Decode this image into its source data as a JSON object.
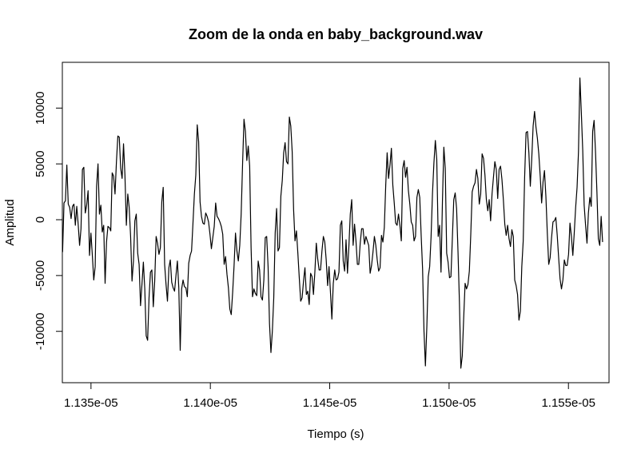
{
  "chart_data": {
    "type": "line",
    "title": "Zoom de la onda en baby_background.wav",
    "xlabel": "Tiempo (s)",
    "ylabel": "Amplitud",
    "xlim": [
      1.1338e-05,
      1.1567e-05
    ],
    "ylim": [
      -14600,
      14100
    ],
    "x_ticks": [
      1.135e-05,
      1.14e-05,
      1.145e-05,
      1.15e-05,
      1.155e-05
    ],
    "x_tick_labels": [
      "1.135e-05",
      "1.140e-05",
      "1.145e-05",
      "1.150e-05",
      "1.155e-05"
    ],
    "y_ticks": [
      -10000,
      -5000,
      0,
      5000,
      10000
    ],
    "y_tick_labels": [
      "-10000",
      "-5000",
      "0",
      "5000",
      "10000"
    ],
    "grid": false,
    "color": "#000000",
    "series": [
      {
        "x_start": 1.13381e-05,
        "x_end": 1.15643e-05,
        "values": [
          -2900,
          1500,
          1700,
          4900,
          1400,
          1100,
          100,
          1200,
          1400,
          -500,
          1200,
          -400,
          -2300,
          -800,
          4500,
          4700,
          600,
          1300,
          2600,
          -3200,
          -1200,
          -3200,
          -5400,
          -4200,
          3000,
          5000,
          500,
          1300,
          -1100,
          -500,
          -5700,
          -2000,
          -600,
          -700,
          -1000,
          4200,
          3900,
          2300,
          5200,
          7500,
          7400,
          4600,
          3700,
          6800,
          4000,
          -500,
          2300,
          1100,
          -1500,
          -5500,
          -3700,
          -100,
          500,
          -3000,
          -4000,
          -7700,
          -5800,
          -3800,
          -6200,
          -10400,
          -10800,
          -7000,
          -4700,
          -4500,
          -7800,
          -5500,
          -1500,
          -2100,
          -3100,
          -2500,
          1600,
          2900,
          -4000,
          -5800,
          -7300,
          -4300,
          -3600,
          -5600,
          -6100,
          -6400,
          -5000,
          -3700,
          -6100,
          -11700,
          -6200,
          -5400,
          -6000,
          -6100,
          -6900,
          -3900,
          -3200,
          -2800,
          -300,
          2300,
          4000,
          8500,
          7000,
          1600,
          300,
          -300,
          -400,
          600,
          300,
          -200,
          -1300,
          -2600,
          -1600,
          -600,
          1500,
          300,
          100,
          -200,
          -600,
          -1300,
          -4000,
          -3300,
          -4900,
          -6100,
          -8000,
          -8500,
          -6500,
          -4100,
          -1200,
          -2800,
          -3700,
          -2300,
          500,
          5000,
          9000,
          7900,
          5300,
          6600,
          4800,
          -2500,
          -6900,
          -6200,
          -6600,
          -6800,
          -3700,
          -4500,
          -6900,
          -7200,
          -5400,
          -1600,
          -1500,
          -4200,
          -9300,
          -11900,
          -10000,
          -7000,
          -1200,
          1000,
          -2800,
          -2500,
          2100,
          3500,
          6000,
          6900,
          5200,
          5000,
          9200,
          8400,
          6100,
          900,
          -1900,
          -1000,
          -3000,
          -5200,
          -7300,
          -7000,
          -5500,
          -4300,
          -6700,
          -6400,
          -7600,
          -4800,
          -5100,
          -6700,
          -4700,
          -2100,
          -3500,
          -4500,
          -4500,
          -2800,
          -1500,
          -2000,
          -3600,
          -5900,
          -4200,
          -6500,
          -8900,
          -5700,
          -4500,
          -5400,
          -5300,
          -4700,
          -500,
          -100,
          -3700,
          -4600,
          -1800,
          -4800,
          -2400,
          500,
          1800,
          -2300,
          -400,
          -1900,
          -4000,
          -4000,
          -2100,
          -800,
          -800,
          -2200,
          -1500,
          -1900,
          -2300,
          -4800,
          -4100,
          -2900,
          -1500,
          -2300,
          -3600,
          -4600,
          -4300,
          -1400,
          -2000,
          -700,
          3100,
          6000,
          3700,
          4900,
          6400,
          3100,
          1500,
          -300,
          -500,
          500,
          -500,
          -1900,
          4600,
          5300,
          3800,
          4700,
          2600,
          1400,
          -200,
          -500,
          -1900,
          -1500,
          2000,
          2700,
          2000,
          -1400,
          -4400,
          -10000,
          -13100,
          -9600,
          -5100,
          -4200,
          -1500,
          2400,
          5100,
          7100,
          5400,
          -1500,
          -500,
          -4700,
          1600,
          6500,
          4600,
          -3000,
          -3800,
          -5200,
          -5100,
          -1700,
          1800,
          2400,
          1000,
          -2900,
          -7400,
          -13300,
          -12200,
          -8800,
          -5700,
          -6200,
          -5800,
          -4600,
          -1300,
          2500,
          3000,
          3300,
          4500,
          3700,
          1400,
          2300,
          5900,
          5500,
          4000,
          1800,
          800,
          1800,
          -100,
          2300,
          3800,
          5200,
          4500,
          1900,
          4500,
          4800,
          3600,
          1800,
          -400,
          -1400,
          -500,
          -1700,
          -2400,
          -900,
          -1500,
          -5400,
          -5900,
          -6700,
          -9000,
          -8200,
          -4200,
          -1900,
          3800,
          7800,
          7900,
          6000,
          3000,
          5400,
          8400,
          9700,
          8300,
          7300,
          5900,
          3900,
          1500,
          3400,
          4400,
          2100,
          -1200,
          -4000,
          -3400,
          -1600,
          -200,
          -100,
          200,
          -1400,
          -3400,
          -5300,
          -6200,
          -5400,
          -3600,
          -4100,
          -4100,
          -3100,
          -300,
          -1500,
          -3200,
          -1200,
          1100,
          2900,
          6100,
          12700,
          9600,
          6200,
          1300,
          -500,
          -2100,
          600,
          2000,
          1200,
          7900,
          8900,
          6100,
          2500,
          -1700,
          -2300,
          300,
          -2000
        ]
      }
    ]
  }
}
